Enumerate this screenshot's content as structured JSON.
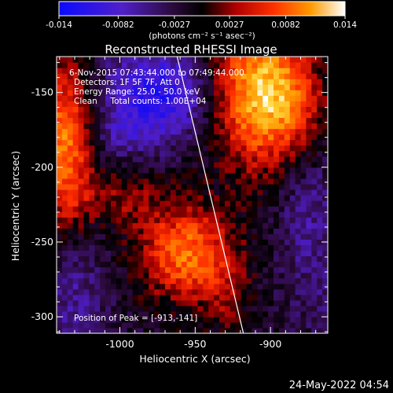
{
  "colorbar": {
    "min": -0.014,
    "max": 0.014,
    "ticks": [
      "-0.014",
      "-0.0082",
      "-0.0027",
      "0.0027",
      "0.0082",
      "0.014"
    ],
    "unit_label": "(photons cm⁻² s⁻¹ asec⁻²)"
  },
  "title": "Reconstructed RHESSI Image",
  "info": {
    "line1": "6-Nov-2015 07:43:44.000 to 07:49:44.000",
    "line2": "Detectors: 1F 5F 7F, Att 0",
    "line3": "Energy Range: 25.0 - 50.0 keV",
    "line4": "Clean     Total counts: 1.00E+04",
    "peak": "Position of Peak = [-913,-141]"
  },
  "axes": {
    "xlabel": "Heliocentric X (arcsec)",
    "ylabel": "Heliocentric Y (arcsec)",
    "x_ticks": [
      "-1000",
      "-950",
      "-900"
    ],
    "y_ticks": [
      "-150",
      "-200",
      "-250",
      "-300"
    ]
  },
  "timestamp": "24-May-2022 04:54",
  "chart_data": {
    "type": "heatmap",
    "title": "Reconstructed RHESSI Image",
    "xlabel": "Heliocentric X (arcsec)",
    "ylabel": "Heliocentric Y (arcsec)",
    "xlim": [
      -1042,
      -862
    ],
    "ylim": [
      -311,
      -126
    ],
    "zlim": [
      -0.014,
      0.014
    ],
    "colormap": "blue-black-red-yellow-white",
    "peak_position": [
      -913,
      -141
    ],
    "limb_line": [
      [
        -962,
        -126
      ],
      [
        -918,
        -311
      ]
    ],
    "features": [
      {
        "name": "positive source",
        "center": [
          -907,
          -150
        ],
        "level": 0.0115
      },
      {
        "name": "positive source",
        "center": [
          -1034,
          -180
        ],
        "level": 0.0095
      },
      {
        "name": "positive source",
        "center": [
          -955,
          -258
        ],
        "level": 0.009
      },
      {
        "name": "negative lobe",
        "center": [
          -975,
          -152
        ],
        "level": -0.0095
      },
      {
        "name": "negative lobe",
        "center": [
          -1025,
          -285
        ],
        "level": -0.0045
      },
      {
        "name": "negative lobe",
        "center": [
          -878,
          -240
        ],
        "level": -0.0045
      }
    ]
  }
}
